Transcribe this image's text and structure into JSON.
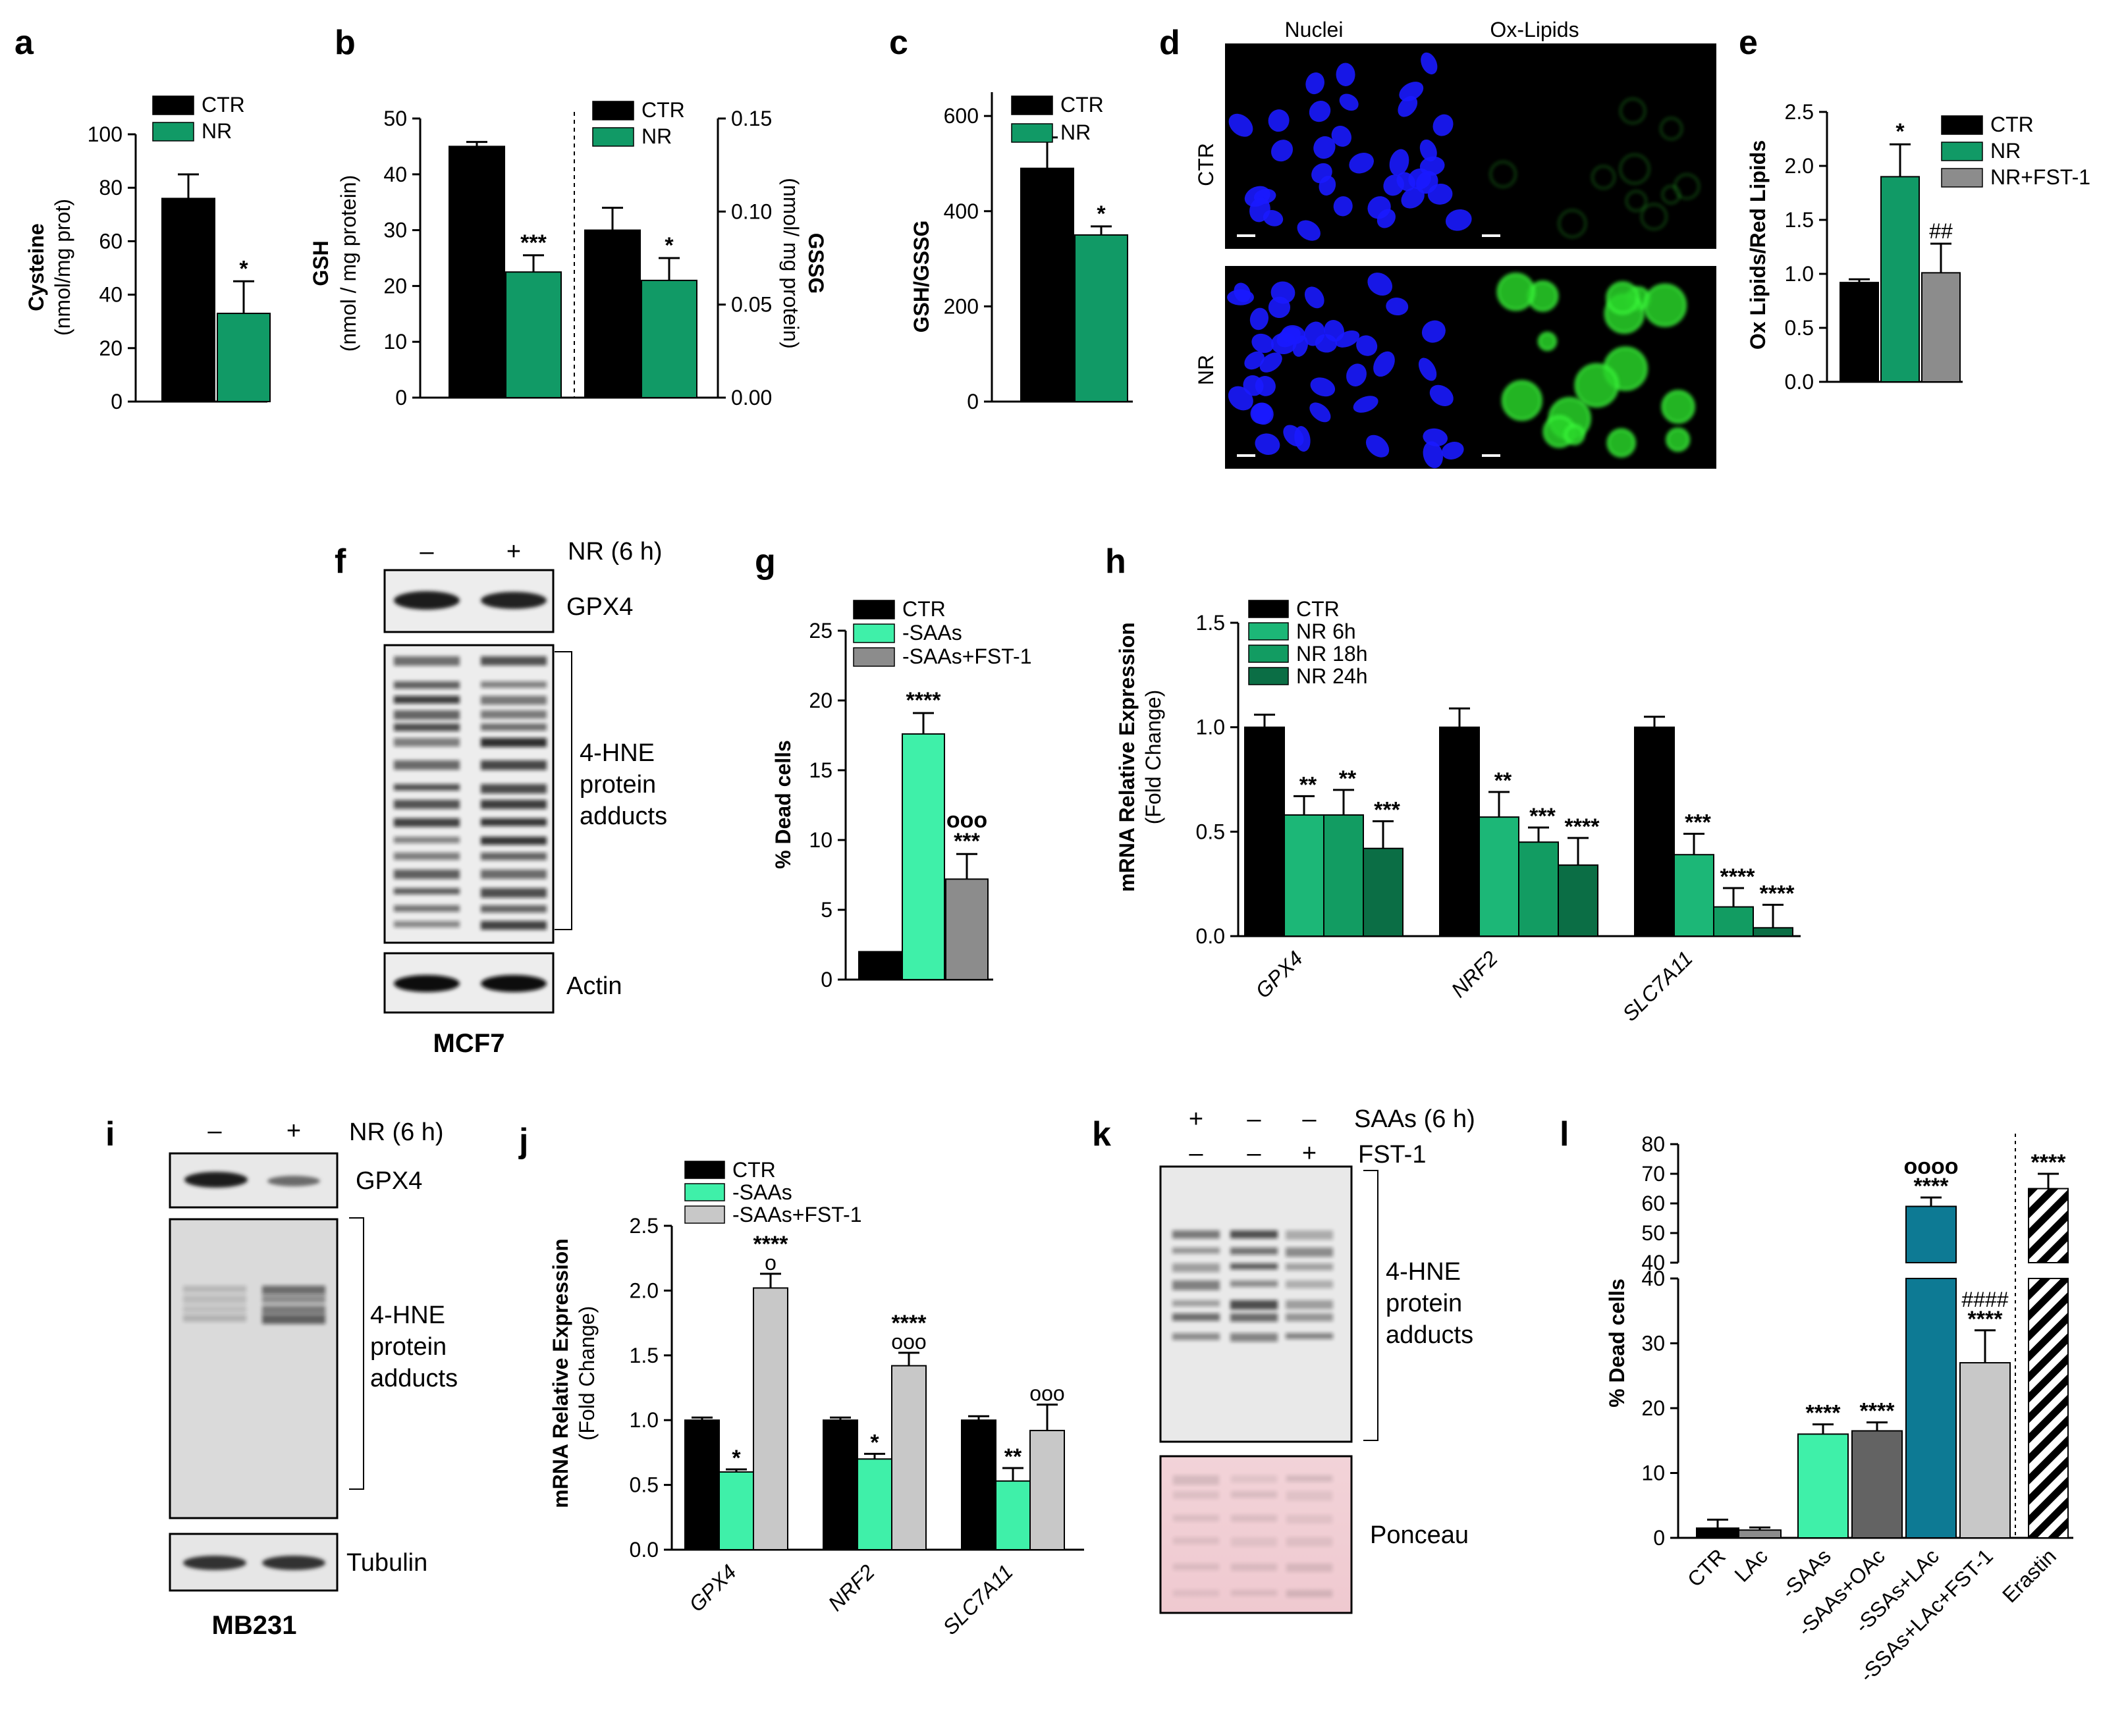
{
  "colors": {
    "black": "#000000",
    "green": "#119a66",
    "gray": "#8c8c8c",
    "mint": "#3ff0a9",
    "lightgray": "#c8c8c8",
    "darkgray": "#636363",
    "teal": "#0d7a94",
    "g6h": "#1cb777",
    "g18h": "#129c62",
    "g24h": "#0b6e45"
  },
  "panels": {
    "a": "a",
    "b": "b",
    "c": "c",
    "d": "d",
    "e": "e",
    "f": "f",
    "g": "g",
    "h": "h",
    "i": "i",
    "j": "j",
    "k": "k",
    "l": "l"
  },
  "chart_data": [
    {
      "id": "a",
      "type": "bar",
      "categories": [
        "CTR",
        "NR"
      ],
      "values": [
        76,
        33
      ],
      "errors": [
        9,
        12
      ],
      "significance": [
        "",
        "*"
      ],
      "ylabel": "Cysteine",
      "ylabel2": "(nmol/mg prot)",
      "ylim": [
        0,
        100
      ],
      "yticks": [
        "0",
        "20",
        "40",
        "60",
        "80",
        "100"
      ],
      "legend": [
        "CTR",
        "NR"
      ]
    },
    {
      "id": "b",
      "type": "bar",
      "left": {
        "categories": [
          "CTR",
          "NR"
        ],
        "values": [
          45,
          22.5
        ],
        "errors": [
          0.8,
          3
        ],
        "significance": [
          "",
          "***"
        ],
        "ylabel": "GSH",
        "ylabel2": "(nmol / mg protein)",
        "ylim": [
          0,
          50
        ],
        "yticks": [
          "0",
          "10",
          "20",
          "30",
          "40",
          "50"
        ]
      },
      "right": {
        "categories": [
          "CTR",
          "NR"
        ],
        "values": [
          0.09,
          0.063
        ],
        "errors": [
          0.012,
          0.012
        ],
        "significance": [
          "",
          "*"
        ],
        "ylabel": "GSSG",
        "ylabel2": "(nmol/ mg protein)",
        "ylim": [
          0,
          0.15
        ],
        "yticks": [
          "0.00",
          "0.05",
          "0.10",
          "0.15"
        ]
      },
      "legend": [
        "CTR",
        "NR"
      ]
    },
    {
      "id": "c",
      "type": "bar",
      "categories": [
        "CTR",
        "NR"
      ],
      "values": [
        490,
        350
      ],
      "errors": [
        65,
        18
      ],
      "significance": [
        "",
        "*"
      ],
      "ylabel": "GSH/GSSG",
      "ylim": [
        0,
        650
      ],
      "yticks": [
        "0",
        "200",
        "400",
        "600"
      ],
      "legend": [
        "CTR",
        "NR"
      ]
    },
    {
      "id": "e",
      "type": "bar",
      "categories": [
        "CTR",
        "NR",
        "NR+FST-1"
      ],
      "values": [
        0.92,
        1.9,
        1.01
      ],
      "errors": [
        0.03,
        0.3,
        0.27
      ],
      "significance": [
        "",
        "*",
        "##"
      ],
      "ylabel": "Ox Lipids/Red Lipids",
      "ylim": [
        0,
        2.5
      ],
      "yticks": [
        "0.0",
        "0.5",
        "1.0",
        "1.5",
        "2.0",
        "2.5"
      ],
      "legend": [
        "CTR",
        "NR",
        "NR+FST-1"
      ]
    },
    {
      "id": "g",
      "type": "bar",
      "categories": [
        "CTR",
        "-SAAs",
        "-SAAs+FST-1"
      ],
      "values": [
        2,
        17.6,
        7.2
      ],
      "errors": [
        0,
        1.5,
        1.8
      ],
      "significance": [
        "",
        "****",
        "***"
      ],
      "significance2": [
        "",
        "",
        "ooo"
      ],
      "ylabel": "% Dead cells",
      "ylim": [
        0,
        25
      ],
      "yticks": [
        "0",
        "5",
        "10",
        "15",
        "20",
        "25"
      ],
      "legend": [
        "CTR",
        "-SAAs",
        "-SAAs+FST-1"
      ]
    },
    {
      "id": "h",
      "type": "bar",
      "categories": [
        "GPX4",
        "NRF2",
        "SLC7A11"
      ],
      "series": [
        {
          "name": "CTR",
          "values": [
            1.0,
            1.0,
            1.0
          ],
          "errors": [
            0.06,
            0.09,
            0.05
          ],
          "significance": [
            "",
            "",
            ""
          ]
        },
        {
          "name": "NR 6h",
          "values": [
            0.58,
            0.57,
            0.39
          ],
          "errors": [
            0.09,
            0.12,
            0.1
          ],
          "significance": [
            "**",
            "**",
            "***"
          ]
        },
        {
          "name": "NR 18h",
          "values": [
            0.58,
            0.45,
            0.14
          ],
          "errors": [
            0.12,
            0.07,
            0.09
          ],
          "significance": [
            "**",
            "***",
            "****"
          ]
        },
        {
          "name": "NR 24h",
          "values": [
            0.42,
            0.34,
            0.04
          ],
          "errors": [
            0.13,
            0.13,
            0.11
          ],
          "significance": [
            "***",
            "****",
            "****"
          ]
        }
      ],
      "ylabel": "mRNA Relative Expression",
      "ylabel2": "(Fold Change)",
      "ylim": [
        0,
        1.5
      ],
      "yticks": [
        "0.0",
        "0.5",
        "1.0",
        "1.5"
      ]
    },
    {
      "id": "j",
      "type": "bar",
      "categories": [
        "GPX4",
        "NRF2",
        "SLC7A11"
      ],
      "series": [
        {
          "name": "CTR",
          "values": [
            1.0,
            1.0,
            1.0
          ],
          "errors": [
            0.02,
            0.02,
            0.03
          ],
          "significance": [
            "",
            "",
            ""
          ]
        },
        {
          "name": "-SAAs",
          "values": [
            0.6,
            0.7,
            0.53
          ],
          "errors": [
            0.02,
            0.04,
            0.1
          ],
          "significance": [
            "*",
            "*",
            "**"
          ]
        },
        {
          "name": "-SAAs+FST-1",
          "values": [
            2.02,
            1.42,
            0.92
          ],
          "errors": [
            0.11,
            0.1,
            0.2
          ],
          "significance": [
            "****",
            "****",
            ""
          ],
          "significance2": [
            "o",
            "ooo",
            "ooo"
          ]
        }
      ],
      "ylabel": "mRNA Relative Expression",
      "ylabel2": "(Fold Change)",
      "ylim": [
        0,
        2.5
      ],
      "yticks": [
        "0.0",
        "0.5",
        "1.0",
        "1.5",
        "2.0",
        "2.5"
      ]
    },
    {
      "id": "l",
      "type": "bar",
      "categories": [
        "CTR",
        "LAc",
        "-SAAs",
        "-SAAs+OAc",
        "-SSAs+LAc",
        "-SSAs+LAc+FST-1",
        "Erastin"
      ],
      "values": [
        1.5,
        1.2,
        16,
        16.5,
        59,
        27,
        65
      ],
      "errors": [
        1.3,
        0.4,
        1.5,
        1.3,
        3,
        5,
        5
      ],
      "significance": [
        "",
        "",
        "****",
        "****",
        "****",
        "****",
        "****"
      ],
      "significance2": [
        "",
        "",
        "",
        "",
        "oooo",
        "####",
        ""
      ],
      "ylabel": "% Dead cells",
      "ylim_lower": [
        0,
        40
      ],
      "ylim_upper": [
        40,
        80
      ],
      "yticks_lower": [
        "0",
        "10",
        "20",
        "30",
        "40"
      ],
      "yticks_upper": [
        "40",
        "50",
        "60",
        "70",
        "80"
      ]
    }
  ],
  "micro": {
    "col_nuclei": "Nuclei",
    "col_oxlipids": "Ox-Lipids",
    "row_ctr": "CTR",
    "row_nr": "NR"
  },
  "blots": {
    "f": {
      "minus": "–",
      "plus": "+",
      "treatment": "NR (6 h)",
      "gpx4": "GPX4",
      "hne1": "4-HNE",
      "hne2": "protein",
      "hne3": "adducts",
      "actin": "Actin",
      "cell": "MCF7"
    },
    "i": {
      "minus": "–",
      "plus": "+",
      "treatment": "NR (6 h)",
      "gpx4": "GPX4",
      "hne1": "4-HNE",
      "hne2": "protein",
      "hne3": "adducts",
      "tubulin": "Tubulin",
      "cell": "MB231"
    },
    "k": {
      "row1": [
        "+",
        "–",
        "–"
      ],
      "row1_label": "SAAs (6 h)",
      "row2": [
        "–",
        "–",
        "+"
      ],
      "row2_label": "FST-1",
      "hne1": "4-HNE",
      "hne2": "protein",
      "hne3": "adducts",
      "ponceau": "Ponceau"
    }
  }
}
